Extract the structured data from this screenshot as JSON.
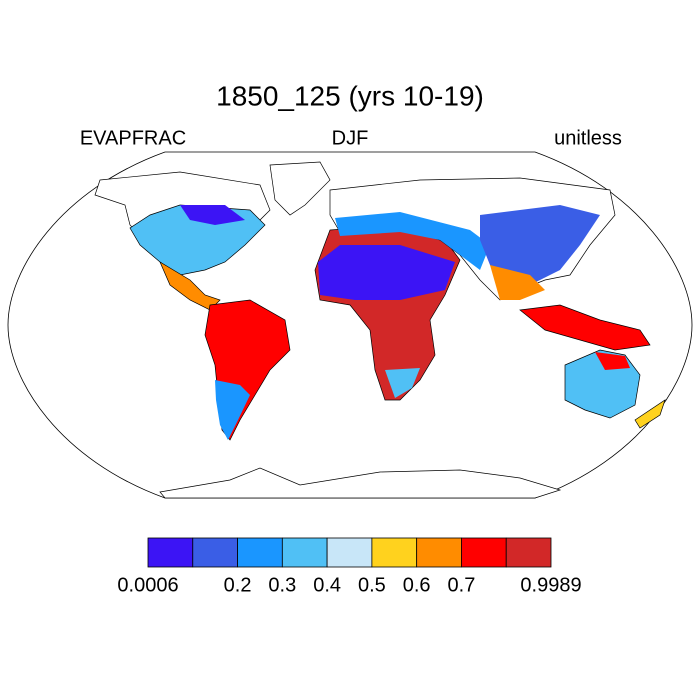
{
  "header": {
    "title": "1850_125 (yrs 10-19)",
    "left": "EVAPFRAC",
    "center": "DJF",
    "right": "unitless"
  },
  "colorbar": {
    "colors": [
      "#3c14f5",
      "#3a5ee6",
      "#1a96ff",
      "#50c0f5",
      "#c8e6f8",
      "#ffd21e",
      "#ff8c00",
      "#ff0000",
      "#d22828"
    ],
    "labels": [
      "0.0006",
      null,
      "0.2",
      "0.3",
      "0.4",
      "0.5",
      "0.6",
      "0.7",
      null,
      "0.9989"
    ]
  }
}
